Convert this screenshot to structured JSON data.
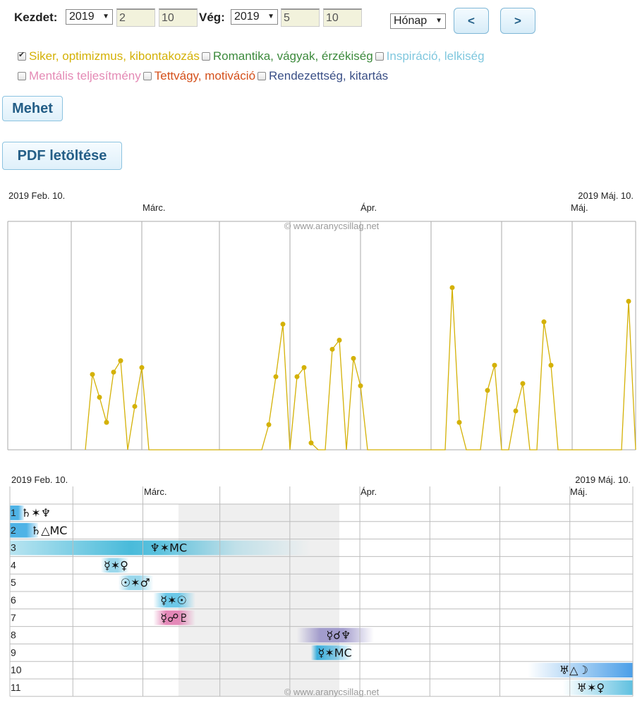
{
  "controls": {
    "start_label": "Kezdet:",
    "start_year": "2019",
    "start_month": "2",
    "start_day": "10",
    "end_label": "Vég:",
    "end_year": "2019",
    "end_month": "5",
    "end_day": "10",
    "period_select": "Hónap",
    "prev_label": "<",
    "next_label": ">"
  },
  "categories": [
    {
      "label": "Siker, optimizmus, kibontakozás",
      "checked": true,
      "color": "#d4b106"
    },
    {
      "label": "Romantika, vágyak, érzékiség",
      "checked": false,
      "color": "#3c8a3c"
    },
    {
      "label": "Inspiráció, lelkiség",
      "checked": false,
      "color": "#7fc7de"
    },
    {
      "label": "Mentális teljesítmény",
      "checked": false,
      "color": "#e48ab5"
    },
    {
      "label": "Tettvágy, motiváció",
      "checked": false,
      "color": "#d4501b"
    },
    {
      "label": "Rendezettség, kitartás",
      "checked": false,
      "color": "#3a4f86"
    }
  ],
  "go_button": "Mehet",
  "pdf_button": "PDF letöltése",
  "chart_data": {
    "type": "line",
    "start_label": "2019 Feb. 10.",
    "end_label": "2019 Máj. 10.",
    "month_labels": [
      "Márc.",
      "Ápr.",
      "Máj."
    ],
    "watermark": "© www.aranycsillag.net",
    "series": [
      {
        "color": "#d4b106",
        "points": [
          [
            11,
            0
          ],
          [
            12,
            33
          ],
          [
            13,
            23
          ],
          [
            14,
            12
          ],
          [
            15,
            34
          ],
          [
            16,
            39
          ],
          [
            17,
            0
          ],
          [
            18,
            19
          ],
          [
            19,
            36
          ],
          [
            20,
            0
          ],
          [
            36,
            0
          ],
          [
            37,
            11
          ],
          [
            38,
            32
          ],
          [
            39,
            55
          ],
          [
            40,
            0
          ],
          [
            41,
            32
          ],
          [
            42,
            36
          ],
          [
            43,
            3
          ],
          [
            44,
            0
          ],
          [
            45,
            0
          ],
          [
            46,
            44
          ],
          [
            47,
            48
          ],
          [
            48,
            0
          ],
          [
            49,
            40
          ],
          [
            50,
            28
          ],
          [
            51,
            0
          ],
          [
            62,
            0
          ],
          [
            63,
            71
          ],
          [
            64,
            12
          ],
          [
            65,
            0
          ],
          [
            66,
            0
          ],
          [
            67,
            0
          ],
          [
            68,
            26
          ],
          [
            69,
            37
          ],
          [
            70,
            0
          ],
          [
            71,
            0
          ],
          [
            72,
            17
          ],
          [
            73,
            29
          ],
          [
            74,
            0
          ],
          [
            75,
            0
          ],
          [
            76,
            56
          ],
          [
            77,
            37
          ],
          [
            78,
            0
          ],
          [
            87,
            0
          ],
          [
            88,
            65
          ],
          [
            89,
            0
          ]
        ]
      }
    ]
  },
  "transits": {
    "start_label": "2019 Feb. 10.",
    "end_label": "2019 Máj. 10.",
    "month_labels": [
      "Márc.",
      "Ápr.",
      "Máj."
    ],
    "watermark": "© www.aranycsillag.net",
    "rows": [
      {
        "num": "1",
        "symbol": "♄✶♆",
        "color": "#4fb3e6"
      },
      {
        "num": "2",
        "symbol": "♄△MC",
        "color": "#4fb3e6"
      },
      {
        "num": "3",
        "symbol": "♆✶MC",
        "color": "#35b3d6"
      },
      {
        "num": "4",
        "symbol": "☿✶♀",
        "color": "#8fd3ea"
      },
      {
        "num": "5",
        "symbol": "☉✶♂",
        "color": "#8fd3ea"
      },
      {
        "num": "6",
        "symbol": "☿✶☉",
        "color": "#5cc2e6"
      },
      {
        "num": "7",
        "symbol": "☿☍♇",
        "color": "#e17bb0"
      },
      {
        "num": "8",
        "symbol": "☿☌♆",
        "color": "#9a93c8"
      },
      {
        "num": "9",
        "symbol": "☿✶MC",
        "color": "#3aaedc"
      },
      {
        "num": "10",
        "symbol": "♅△☽",
        "color": "#4a9ee8"
      },
      {
        "num": "11",
        "symbol": "♅✶♀",
        "color": "#5fc0e0"
      }
    ]
  }
}
